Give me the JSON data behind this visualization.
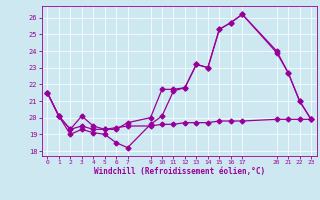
{
  "xlabel": "Windchill (Refroidissement éolien,°C)",
  "bg_color": "#cde8f0",
  "line_color": "#990099",
  "grid_color": "#ffffff",
  "ylim": [
    17.7,
    26.7
  ],
  "xlim": [
    -0.5,
    23.5
  ],
  "yticks": [
    18,
    19,
    20,
    21,
    22,
    23,
    24,
    25,
    26
  ],
  "xticks": [
    0,
    1,
    2,
    3,
    4,
    5,
    6,
    7,
    9,
    10,
    11,
    12,
    13,
    14,
    15,
    16,
    17,
    20,
    21,
    22,
    23
  ],
  "line1_x": [
    0,
    1,
    2,
    3,
    4,
    5,
    6,
    7,
    9,
    10,
    11,
    12,
    13,
    14,
    15,
    16,
    17,
    20,
    21,
    22,
    23
  ],
  "line1_y": [
    21.5,
    20.1,
    19.0,
    19.3,
    19.1,
    19.0,
    18.5,
    18.2,
    19.6,
    20.1,
    21.6,
    21.8,
    23.2,
    23.0,
    25.3,
    25.7,
    26.2,
    23.9,
    22.7,
    21.0,
    19.9
  ],
  "line2_x": [
    0,
    1,
    2,
    3,
    4,
    5,
    6,
    7,
    9,
    10,
    11,
    12,
    13,
    14,
    15,
    16,
    17,
    20,
    21,
    22,
    23
  ],
  "line2_y": [
    21.5,
    20.1,
    19.3,
    20.1,
    19.5,
    19.3,
    19.3,
    19.7,
    20.0,
    21.7,
    21.7,
    21.8,
    23.2,
    23.0,
    25.3,
    25.7,
    26.2,
    24.0,
    22.7,
    21.0,
    19.9
  ],
  "line3_x": [
    0,
    1,
    2,
    3,
    4,
    5,
    6,
    7,
    9,
    10,
    11,
    12,
    13,
    14,
    15,
    16,
    17,
    20,
    21,
    22,
    23
  ],
  "line3_y": [
    21.5,
    20.1,
    19.3,
    19.5,
    19.3,
    19.3,
    19.4,
    19.5,
    19.5,
    19.6,
    19.6,
    19.7,
    19.7,
    19.7,
    19.8,
    19.8,
    19.8,
    19.9,
    19.9,
    19.9,
    19.9
  ],
  "marker": "D",
  "markersize": 2.5,
  "linewidth": 0.9
}
